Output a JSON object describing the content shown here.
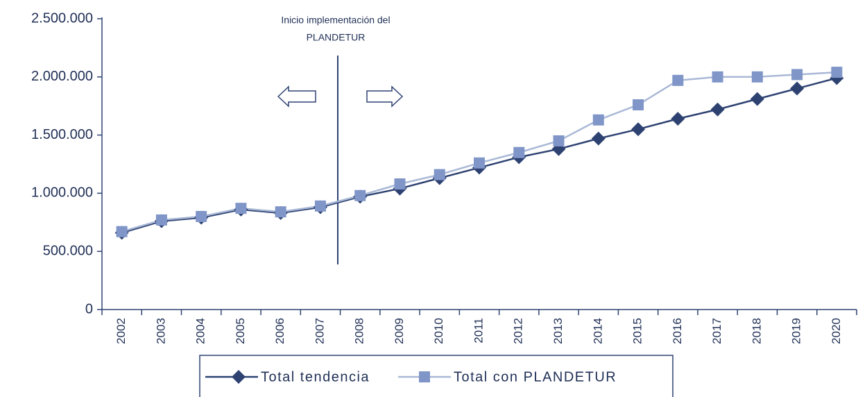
{
  "chart_data": {
    "type": "line",
    "annotation": [
      "Inicio implementación del",
      "PLANDETUR"
    ],
    "categories": [
      "2002",
      "2003",
      "2004",
      "2005",
      "2006",
      "2007",
      "2008",
      "2009",
      "2010",
      "2011",
      "2012",
      "2013",
      "2014",
      "2015",
      "2016",
      "2017",
      "2018",
      "2019",
      "2020"
    ],
    "series": [
      {
        "name": "Total tendencia",
        "color": "#2e4272",
        "line_color": "#2e4272",
        "marker": "diamond",
        "values": [
          660000,
          760000,
          790000,
          860000,
          830000,
          880000,
          970000,
          1040000,
          1130000,
          1220000,
          1310000,
          1380000,
          1470000,
          1550000,
          1640000,
          1720000,
          1810000,
          1900000,
          1990000
        ]
      },
      {
        "name": "Total con PLANDETUR",
        "color": "#8096c8",
        "line_color": "#a9b8d6",
        "marker": "square",
        "values": [
          670000,
          770000,
          800000,
          870000,
          840000,
          890000,
          980000,
          1080000,
          1160000,
          1260000,
          1350000,
          1450000,
          1630000,
          1760000,
          1970000,
          2000000,
          2000000,
          2020000,
          2040000
        ]
      }
    ],
    "ylim": [
      0,
      2500000
    ],
    "yticks": [
      0,
      {
        "value": 500000,
        "label": "500.000"
      },
      {
        "value": 1000000,
        "label": "1.000.000"
      },
      {
        "value": 1500000,
        "label": "1.500.000"
      },
      {
        "value": 2000000,
        "label": "2.000.000"
      },
      {
        "value": 2500000,
        "label": "2.500.000"
      }
    ],
    "grid": false,
    "legend": "bottom"
  }
}
